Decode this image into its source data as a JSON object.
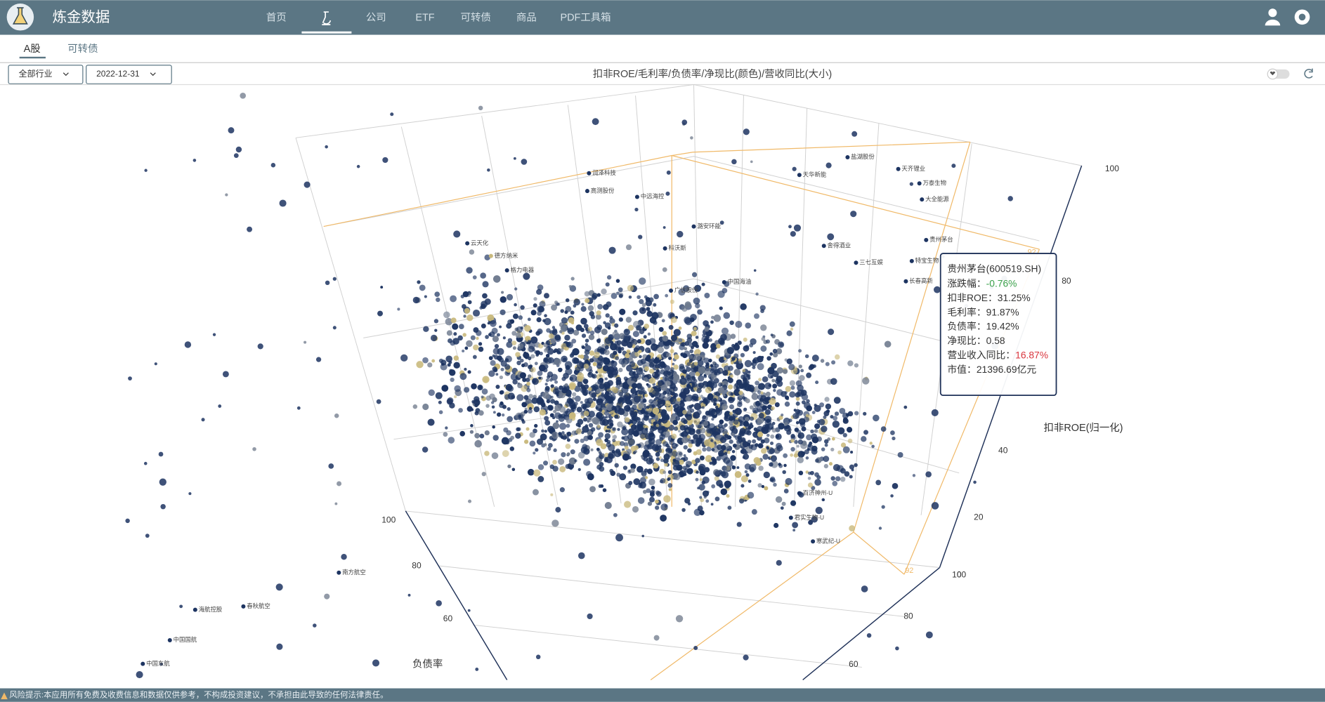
{
  "header": {
    "brand": "炼金数据",
    "nav": [
      "首页",
      "公司",
      "ETF",
      "可转债",
      "商品",
      "PDF工具箱"
    ]
  },
  "tabs": [
    "A股",
    "可转债"
  ],
  "filters": {
    "industry": "全部行业",
    "date": "2022-12-31"
  },
  "chart": {
    "title": "扣非ROE/毛利率/负债率/净现比(颜色)/营收同比(大小)",
    "roe_axis": {
      "label": "扣非ROE(归一化)",
      "ticks": [
        100,
        80,
        40,
        20,
        0
      ]
    },
    "margin_axis": {
      "ticks": [
        100,
        80,
        60
      ]
    },
    "debt_axis": {
      "label": "负债率",
      "ticks": [
        100,
        80,
        60
      ]
    },
    "bound_labels": [
      "92",
      "92"
    ],
    "stock_labels": [
      "盐湖股份",
      "天齐锂业",
      "天华新能",
      "万泰生物",
      "大全能源",
      "润泽科技",
      "高测股份",
      "中远海控",
      "云天化",
      "德方纳米",
      "格力电器",
      "潞安环能",
      "科沃斯",
      "广信股份",
      "中国海油",
      "贵州茅台",
      "三七互娱",
      "舍得酒业",
      "特宝生物",
      "长春高新",
      "百济神州-U",
      "君实生物-U",
      "寒武纪-U",
      "南方航空",
      "海航控股",
      "春秋航空",
      "中国国航",
      "中国东航"
    ],
    "tooltip": {
      "title": "贵州茅台(600519.SH)",
      "rows": [
        [
          "涨跌幅：",
          "-0.76%"
        ],
        [
          "扣非ROE：",
          "31.25%"
        ],
        [
          "毛利率：",
          "91.87%"
        ],
        [
          "负债率：",
          "19.42%"
        ],
        [
          "净现比：",
          "0.58"
        ],
        [
          "营业收入同比：",
          "16.87%"
        ],
        [
          "市值：",
          "21396.69亿元"
        ]
      ]
    }
  },
  "footer": "风险提示:本应用所有免费及收费信息和数据仅供参考，不构成投资建议，不承担由此导致的任何法律责任。"
}
